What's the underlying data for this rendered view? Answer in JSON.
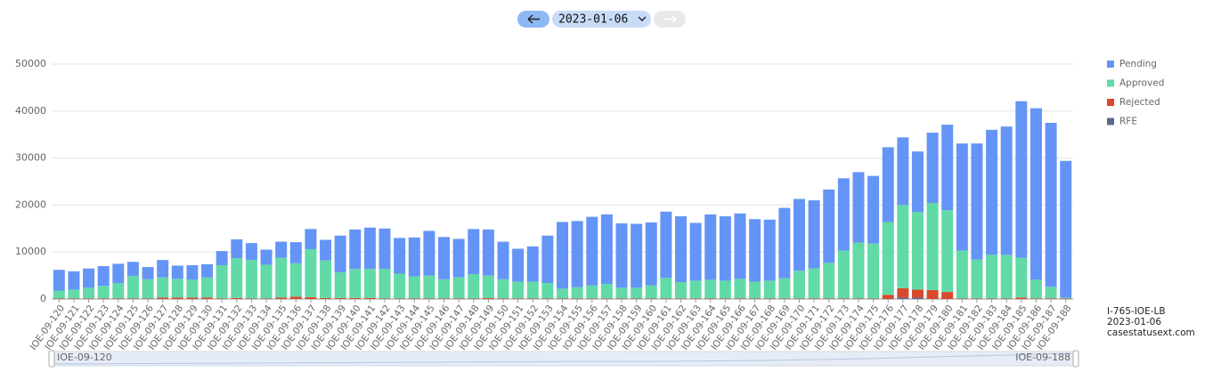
{
  "chart_data": {
    "type": "stacked_bar",
    "date": "2023-01-06",
    "footer": [
      "I-765-IOE-LB",
      "2023-01-06",
      "casestatusext.com"
    ],
    "categories": [
      "IOE-09-120",
      "IOE-09-121",
      "IOE-09-122",
      "IOE-09-123",
      "IOE-09-124",
      "IOE-09-125",
      "IOE-09-126",
      "IOE-09-127",
      "IOE-09-128",
      "IOE-09-129",
      "IOE-09-130",
      "IOE-09-131",
      "IOE-09-132",
      "IOE-09-133",
      "IOE-09-134",
      "IOE-09-135",
      "IOE-09-136",
      "IOE-09-137",
      "IOE-09-138",
      "IOE-09-139",
      "IOE-09-140",
      "IOE-09-141",
      "IOE-09-142",
      "IOE-09-143",
      "IOE-09-144",
      "IOE-09-145",
      "IOE-09-146",
      "IOE-09-147",
      "IOE-09-148",
      "IOE-09-149",
      "IOE-09-150",
      "IOE-09-151",
      "IOE-09-152",
      "IOE-09-153",
      "IOE-09-154",
      "IOE-09-155",
      "IOE-09-156",
      "IOE-09-157",
      "IOE-09-158",
      "IOE-09-159",
      "IOE-09-160",
      "IOE-09-161",
      "IOE-09-162",
      "IOE-09-163",
      "IOE-09-164",
      "IOE-09-165",
      "IOE-09-166",
      "IOE-09-167",
      "IOE-09-168",
      "IOE-09-169",
      "IOE-09-170",
      "IOE-09-171",
      "IOE-09-172",
      "IOE-09-173",
      "IOE-09-174",
      "IOE-09-175",
      "IOE-09-176",
      "IOE-09-177",
      "IOE-09-178",
      "IOE-09-179",
      "IOE-09-180",
      "IOE-09-181",
      "IOE-09-182",
      "IOE-09-183",
      "IOE-09-184",
      "IOE-09-185",
      "IOE-09-186",
      "IOE-09-187",
      "IOE-09-188"
    ],
    "series": [
      {
        "name": "Pending",
        "color": "#6495f6",
        "values": [
          4400,
          3900,
          4100,
          4200,
          4100,
          3000,
          2600,
          3700,
          2800,
          3100,
          2800,
          3000,
          4000,
          3600,
          3200,
          3400,
          4500,
          4300,
          4400,
          7800,
          8400,
          8800,
          8600,
          7600,
          8300,
          9500,
          9000,
          8200,
          9600,
          9800,
          8000,
          7000,
          7500,
          10100,
          14200,
          14100,
          14600,
          14800,
          13700,
          13600,
          13400,
          14100,
          14000,
          12300,
          13900,
          13700,
          13900,
          13300,
          13000,
          15000,
          15300,
          14500,
          15600,
          15400,
          15000,
          14400,
          15900,
          14400,
          12900,
          15000,
          18200,
          22800,
          24700,
          26600,
          27300,
          33300,
          36500,
          34900,
          29100
        ]
      },
      {
        "name": "Approved",
        "color": "#62daa8",
        "values": [
          1700,
          1900,
          2300,
          2700,
          3300,
          4800,
          4100,
          4300,
          4000,
          3800,
          4300,
          7100,
          8500,
          8200,
          7200,
          8500,
          7100,
          10200,
          8000,
          5500,
          6200,
          6200,
          6300,
          5300,
          4700,
          4900,
          4100,
          4500,
          5200,
          4800,
          4100,
          3600,
          3600,
          3300,
          2100,
          2400,
          2800,
          3100,
          2300,
          2300,
          2800,
          4400,
          3500,
          3800,
          4000,
          3800,
          4200,
          3600,
          3800,
          4300,
          5900,
          6400,
          7600,
          10200,
          11900,
          11700,
          15500,
          17700,
          16500,
          18500,
          17400,
          10200,
          8300,
          9300,
          9300,
          8500,
          4000,
          2500,
          200
        ]
      },
      {
        "name": "Rejected",
        "color": "#d9492b",
        "values": [
          100,
          100,
          100,
          100,
          100,
          100,
          100,
          300,
          300,
          300,
          300,
          100,
          200,
          100,
          100,
          300,
          500,
          400,
          200,
          200,
          200,
          200,
          100,
          100,
          100,
          100,
          100,
          100,
          100,
          200,
          100,
          100,
          100,
          100,
          100,
          100,
          100,
          100,
          100,
          100,
          100,
          100,
          100,
          100,
          100,
          100,
          100,
          100,
          100,
          100,
          100,
          100,
          100,
          100,
          100,
          100,
          900,
          2000,
          1700,
          1900,
          1500,
          100,
          100,
          100,
          100,
          300,
          100,
          100,
          100
        ]
      },
      {
        "name": "RFE",
        "color": "#5b6a8c",
        "values": [
          0,
          0,
          0,
          0,
          0,
          0,
          0,
          0,
          0,
          0,
          0,
          0,
          0,
          0,
          0,
          0,
          0,
          0,
          0,
          0,
          0,
          0,
          0,
          0,
          0,
          0,
          0,
          0,
          0,
          0,
          0,
          0,
          0,
          0,
          0,
          0,
          0,
          0,
          0,
          0,
          0,
          0,
          0,
          0,
          0,
          0,
          0,
          0,
          0,
          0,
          0,
          0,
          0,
          0,
          0,
          0,
          0,
          300,
          300,
          0,
          0,
          0,
          0,
          0,
          0,
          0,
          0,
          0,
          0
        ]
      }
    ],
    "ylim": [
      0,
      50000
    ],
    "yticks": [
      0,
      10000,
      20000,
      30000,
      40000,
      50000
    ],
    "grid": true
  }
}
